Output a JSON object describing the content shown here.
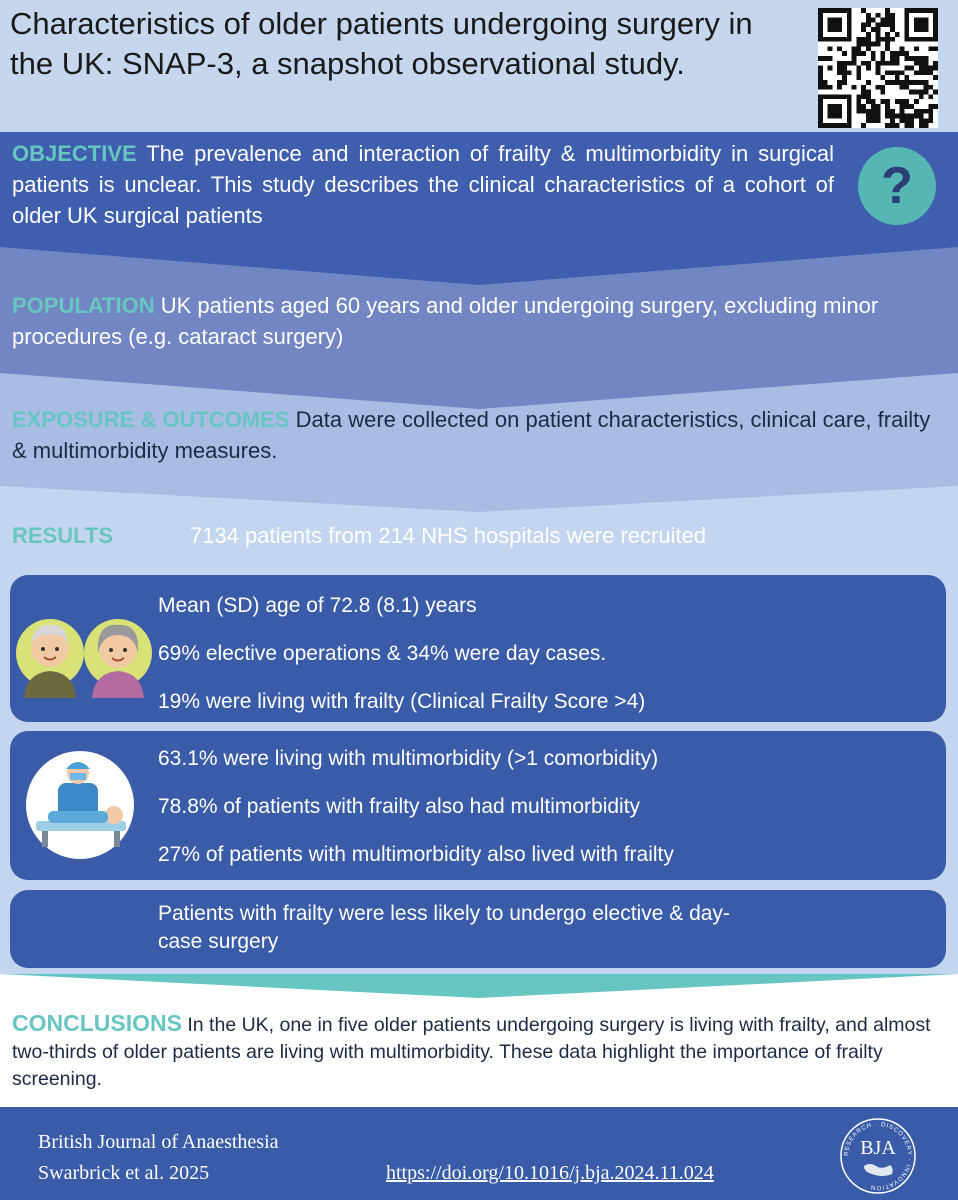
{
  "header": {
    "title": "Characteristics of older patients undergoing surgery in the UK: SNAP-3, a snapshot observational study."
  },
  "objective": {
    "label": "OBJECTIVE",
    "text": "The prevalence and interaction of frailty & multimorbidity in surgical patients is unclear. This study describes the clinical characteristics of a cohort of older UK surgical patients",
    "icon": "question-icon",
    "icon_glyph": "?"
  },
  "population": {
    "label": "POPULATION",
    "text": "UK patients aged 60 years and older undergoing surgery, excluding minor procedures (e.g. cataract surgery)"
  },
  "exposure": {
    "label": "EXPOSURE & OUTCOMES",
    "text": "Data were collected on patient characteristics, clinical care, frailty & multimorbidity measures."
  },
  "results": {
    "label": "RESULTS",
    "headline": "7134 patients from 214 NHS hospitals were recruited",
    "box1": {
      "icon": "elderly-couple-icon",
      "lines": [
        "Mean (SD) age of 72.8 (8.1) years",
        "69% elective operations & 34% were day cases.",
        "19% were living with frailty (Clinical Frailty Score >4)"
      ]
    },
    "box2": {
      "icon": "surgeon-patient-icon",
      "lines": [
        "63.1% were living with multimorbidity (>1 comorbidity)",
        "78.8% of patients with frailty also had multimorbidity",
        "27% of patients with multimorbidity also lived with frailty"
      ]
    },
    "box3": {
      "lines": [
        "Patients with frailty were less likely to undergo elective & day-",
        "case surgery"
      ]
    }
  },
  "conclusions": {
    "label": "CONCLUSIONS",
    "text": "In the UK, one in five older patients undergoing surgery is living with frailty, and almost two-thirds of older patients are living with multimorbidity. These data highlight the importance of frailty screening."
  },
  "footer": {
    "journal": "British Journal of Anaesthesia",
    "authors": "Swarbrick et al. 2025",
    "doi": "https://doi.org/10.1016/j.bja.2024.11.024",
    "logo_text": "BJA",
    "logo_ring_text": "RESEARCH · DISCOVERY · INNOVATION"
  },
  "colors": {
    "header_bg": "#c5d6ee",
    "objective_bg": "#3f5fae",
    "population_bg": "#7186c2",
    "exposure_bg": "#a9bde4",
    "results_bg": "#c4d6ef",
    "box_bg": "#3a5ba7",
    "teal_accent": "#67c6c1",
    "footer_bg": "#3a5ba7"
  }
}
